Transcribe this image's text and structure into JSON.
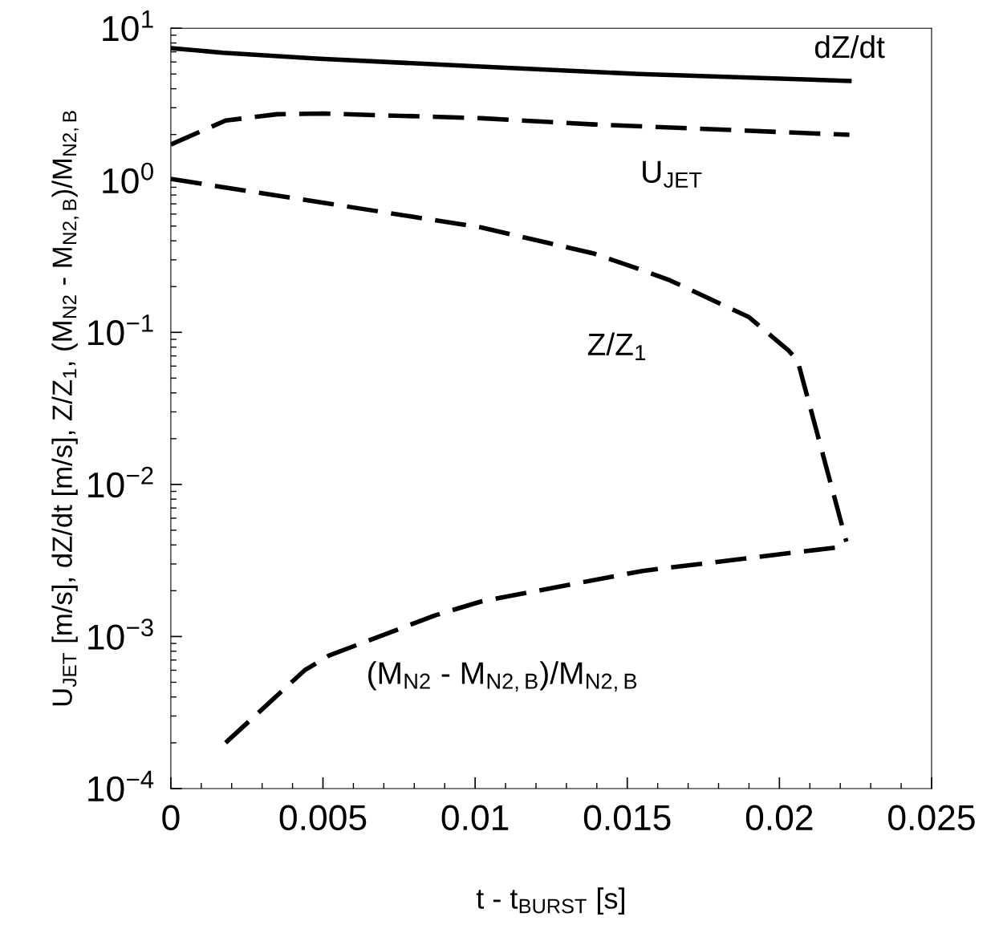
{
  "chart_data": {
    "type": "line",
    "xlabel": "t - t$_{BURST}$ [s]",
    "ylabel": "U$_{JET}$ [m/s], dZ/dt [m/s], Z/Z$_{1}$, (M$_{N2}$ - M$_{N2,B}$)/M$_{N2,B}$",
    "log": "y",
    "xlim": [
      0,
      0.025
    ],
    "xticks": [
      0,
      0.005,
      0.01,
      0.015,
      0.02,
      0.025
    ],
    "ylim": [
      0.0001,
      10
    ],
    "yticks": [
      {
        "value": 0.0001,
        "label": "10$^{−4}$"
      },
      {
        "value": 0.001,
        "label": "10$^{−3}$"
      },
      {
        "value": 0.01,
        "label": "10$^{−2}$"
      },
      {
        "value": 0.1,
        "label": "10$^{−1}$"
      },
      {
        "value": 1,
        "label": "10$^{0}$"
      },
      {
        "value": 10,
        "label": "10$^{1}$"
      }
    ],
    "grid": false,
    "legend": false,
    "series": [
      {
        "name": "dZ/dt",
        "color": "#000000",
        "line_style": "solid",
        "x": [
          0,
          0.0017,
          0.0049,
          0.0102,
          0.0154,
          0.0223
        ],
        "values": [
          7.4,
          6.9,
          6.3,
          5.6,
          5.0,
          4.5
        ]
      },
      {
        "name": "U$_{JET}$",
        "color": "#000000",
        "line_style": "dashed",
        "x": [
          0,
          0.0018,
          0.0035,
          0.005,
          0.0102,
          0.0139,
          0.0223
        ],
        "values": [
          1.72,
          2.47,
          2.72,
          2.75,
          2.56,
          2.33,
          1.99
        ]
      },
      {
        "name": "Z/Z$_{1}$",
        "color": "#000000",
        "line_style": "dashed",
        "x": [
          0,
          0.0102,
          0.0139,
          0.0154,
          0.0164,
          0.019,
          0.0203,
          0.0206,
          0.0222
        ],
        "values": [
          1.02,
          0.49,
          0.33,
          0.26,
          0.22,
          0.126,
          0.076,
          0.065,
          0.0042
        ]
      },
      {
        "name": "(M$_{N2}$ - M$_{N2,B}$)/M$_{N2,B}$",
        "color": "#000000",
        "line_style": "dashed",
        "x": [
          0.0018,
          0.0044,
          0.0052,
          0.0087,
          0.0102,
          0.0155,
          0.0221
        ],
        "values": [
          0.0002,
          0.0006,
          0.00075,
          0.00138,
          0.0017,
          0.0027,
          0.0039
        ]
      }
    ]
  }
}
